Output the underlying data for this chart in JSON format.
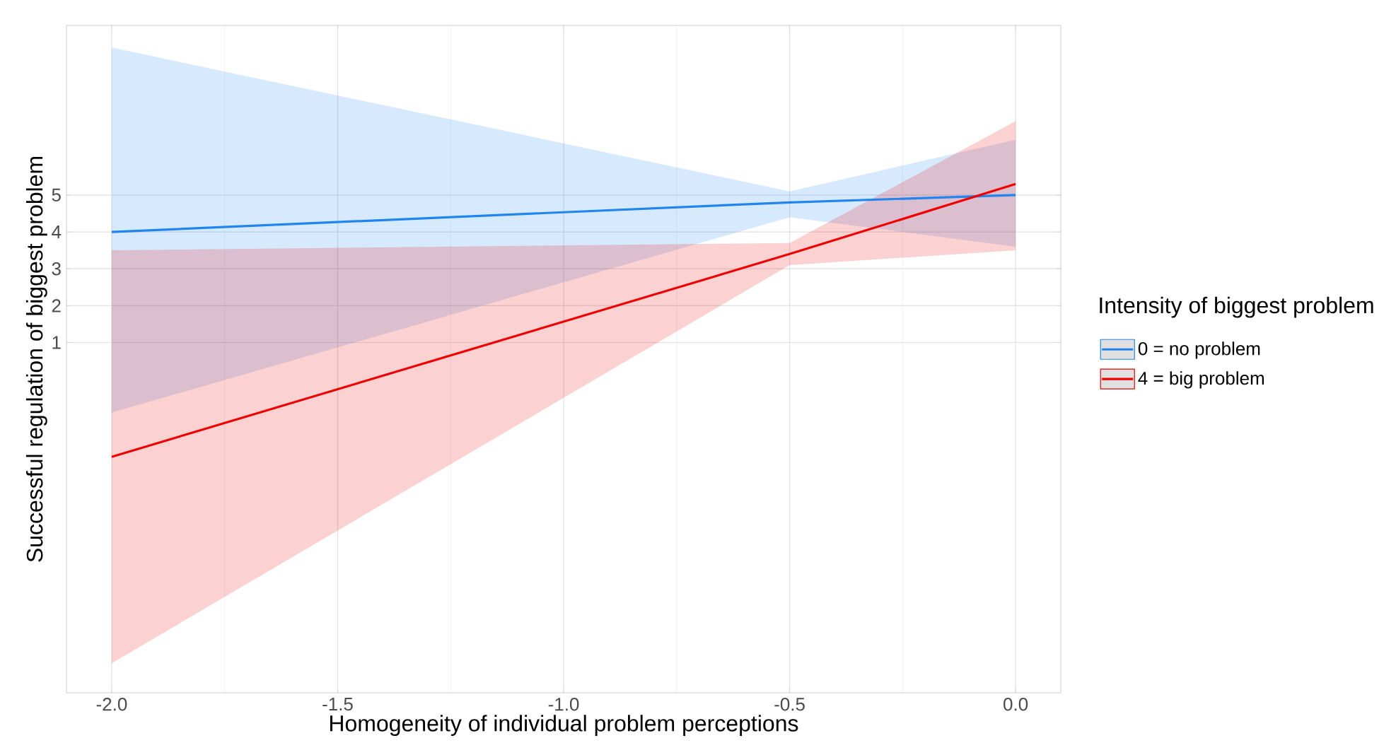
{
  "chart_data": {
    "type": "line",
    "xlabel": "Homogeneity of individual problem perceptions",
    "ylabel": "Successful regulation of biggest problem",
    "legend_title": "Intensity of biggest problem",
    "x": [
      -2,
      -0.5,
      0
    ],
    "series": [
      {
        "name": "0 = no problem",
        "color": "#2185ef",
        "values": [
          4.0,
          4.8,
          5.0
        ],
        "lower": [
          -0.9,
          4.4,
          3.6
        ],
        "upper": [
          9.0,
          5.1,
          6.5
        ]
      },
      {
        "name": "4 = big problem",
        "color": "#ee0000",
        "values": [
          -2.1,
          3.4,
          5.3
        ],
        "lower": [
          -7.7,
          3.1,
          3.5
        ],
        "upper": [
          3.5,
          3.7,
          7.0
        ]
      }
    ],
    "xlim": [
      -2.1,
      0.1
    ],
    "xticks": [
      {
        "value": -2,
        "label": "-2.0"
      },
      {
        "value": -1.5,
        "label": "-1.5"
      },
      {
        "value": -1,
        "label": "-1.0"
      },
      {
        "value": -0.5,
        "label": "-0.5"
      },
      {
        "value": 0,
        "label": "0.0"
      }
    ],
    "ylim": [
      -8.5,
      9.6
    ],
    "yticks": [
      1,
      2,
      3,
      4,
      5
    ],
    "grid": true,
    "legend": "right",
    "line_style": "solid",
    "marker": "none"
  }
}
